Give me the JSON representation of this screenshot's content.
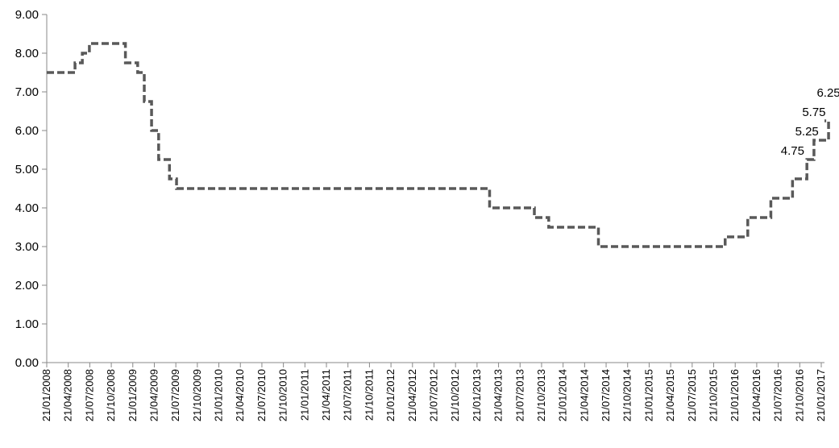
{
  "chart_data": {
    "type": "line",
    "title": "",
    "xlabel": "",
    "ylabel": "",
    "ylim": [
      0,
      9
    ],
    "y_ticks": [
      "0.00",
      "1.00",
      "2.00",
      "3.00",
      "4.00",
      "5.00",
      "6.00",
      "7.00",
      "8.00",
      "9.00"
    ],
    "x_tick_labels": [
      "21/01/2008",
      "21/04/2008",
      "21/07/2008",
      "21/10/2008",
      "21/01/2009",
      "21/04/2009",
      "21/07/2009",
      "21/10/2009",
      "21/01/2010",
      "21/04/2010",
      "21/07/2010",
      "21/10/2010",
      "21/01/2011",
      "21/04/2011",
      "21/07/2011",
      "21/10/2011",
      "21/01/2012",
      "21/04/2012",
      "21/07/2012",
      "21/10/2012",
      "21/01/2013",
      "21/04/2013",
      "21/07/2013",
      "21/10/2013",
      "21/01/2014",
      "21/04/2014",
      "21/07/2014",
      "21/10/2014",
      "21/01/2015",
      "21/04/2015",
      "21/07/2015",
      "21/10/2015",
      "21/01/2016",
      "21/04/2016",
      "21/07/2016",
      "21/10/2016",
      "21/01/2017"
    ],
    "line_style": "dashed",
    "line_color": "#595959",
    "grid": false,
    "legend": "none",
    "series": [
      {
        "values": [
          {
            "x": "21/01/2008",
            "y": 7.5
          },
          {
            "x": "20/05/2008",
            "y": 7.75
          },
          {
            "x": "20/06/2008",
            "y": 8.0
          },
          {
            "x": "20/07/2008",
            "y": 8.25
          },
          {
            "x": "20/12/2008",
            "y": 7.75
          },
          {
            "x": "10/02/2009",
            "y": 7.5
          },
          {
            "x": "10/03/2009",
            "y": 6.75
          },
          {
            "x": "10/04/2009",
            "y": 6.0
          },
          {
            "x": "10/05/2009",
            "y": 5.25
          },
          {
            "x": "25/06/2009",
            "y": 4.75
          },
          {
            "x": "25/07/2009",
            "y": 4.5
          },
          {
            "x": "15/03/2013",
            "y": 4.0
          },
          {
            "x": "21/09/2013",
            "y": 3.75
          },
          {
            "x": "21/11/2013",
            "y": 3.5
          },
          {
            "x": "20/06/2014",
            "y": 3.0
          },
          {
            "x": "10/12/2015",
            "y": 3.25
          },
          {
            "x": "15/03/2016",
            "y": 3.75
          },
          {
            "x": "21/06/2016",
            "y": 4.25
          },
          {
            "x": "21/09/2016",
            "y": 4.75
          },
          {
            "x": "21/11/2016",
            "y": 5.25
          },
          {
            "x": "21/12/2016",
            "y": 5.75
          },
          {
            "x": "21/02/2017",
            "y": 6.25
          }
        ],
        "end": "25/02/2017"
      }
    ],
    "annotations": [
      {
        "text": "4.75",
        "x": "21/09/2016",
        "y": 4.75
      },
      {
        "text": "5.25",
        "x": "21/11/2016",
        "y": 5.25
      },
      {
        "text": "5.75",
        "x": "21/12/2016",
        "y": 5.75
      },
      {
        "text": "6.25",
        "x": "21/02/2017",
        "y": 6.25
      }
    ]
  }
}
